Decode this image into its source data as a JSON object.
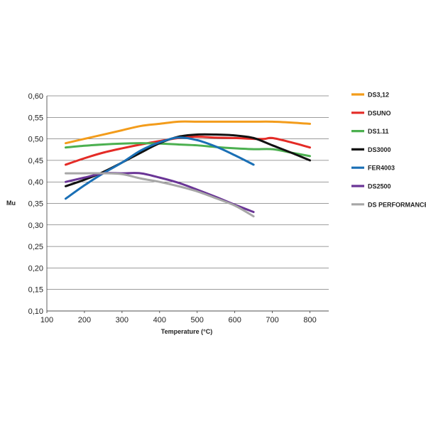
{
  "chart_data": {
    "type": "line",
    "xlabel": "Temperature (°C)",
    "ylabel": "Mu",
    "xlim": [
      100,
      850
    ],
    "ylim": [
      0.1,
      0.6
    ],
    "xticks": [
      100,
      200,
      300,
      400,
      500,
      600,
      700,
      800
    ],
    "yticks": [
      0.1,
      0.15,
      0.2,
      0.25,
      0.3,
      0.35,
      0.4,
      0.45,
      0.5,
      0.55,
      0.6
    ],
    "ytick_labels": [
      "0,10",
      "0,15",
      "0,20",
      "0,25",
      "0,30",
      "0,35",
      "0,40",
      "0,45",
      "0,50",
      "0,55",
      "0,60"
    ],
    "grid": {
      "horizontal": true,
      "vertical": false
    },
    "legend_position": "right",
    "series": [
      {
        "name": "DS3,12",
        "color": "#F39C1B",
        "x": [
          150,
          200,
          250,
          300,
          350,
          400,
          450,
          500,
          550,
          600,
          650,
          700,
          750,
          800
        ],
        "y": [
          0.49,
          0.5,
          0.51,
          0.52,
          0.53,
          0.535,
          0.54,
          0.54,
          0.54,
          0.54,
          0.54,
          0.54,
          0.538,
          0.535
        ]
      },
      {
        "name": "DSUNO",
        "color": "#E42B26",
        "x": [
          150,
          200,
          250,
          300,
          350,
          400,
          450,
          500,
          550,
          600,
          650,
          680,
          700,
          750,
          800
        ],
        "y": [
          0.44,
          0.455,
          0.468,
          0.478,
          0.487,
          0.495,
          0.502,
          0.505,
          0.503,
          0.502,
          0.5,
          0.5,
          0.502,
          0.492,
          0.48
        ]
      },
      {
        "name": "DS1.11",
        "color": "#4CB050",
        "x": [
          150,
          200,
          250,
          300,
          350,
          400,
          450,
          500,
          550,
          600,
          650,
          700,
          750,
          800
        ],
        "y": [
          0.48,
          0.484,
          0.487,
          0.489,
          0.49,
          0.489,
          0.487,
          0.485,
          0.481,
          0.478,
          0.476,
          0.476,
          0.468,
          0.46
        ]
      },
      {
        "name": "DS3000",
        "color": "#111111",
        "x": [
          150,
          200,
          250,
          300,
          350,
          400,
          450,
          500,
          550,
          600,
          650,
          700,
          750,
          800
        ],
        "y": [
          0.39,
          0.405,
          0.423,
          0.445,
          0.468,
          0.49,
          0.505,
          0.51,
          0.51,
          0.508,
          0.502,
          0.485,
          0.468,
          0.45
        ]
      },
      {
        "name": "FER4003",
        "color": "#1A6FB5",
        "x": [
          150,
          200,
          250,
          300,
          350,
          400,
          450,
          500,
          550,
          600,
          650
        ],
        "y": [
          0.361,
          0.392,
          0.42,
          0.445,
          0.473,
          0.492,
          0.503,
          0.497,
          0.482,
          0.462,
          0.44
        ]
      },
      {
        "name": "DS2500",
        "color": "#6A3596",
        "x": [
          150,
          200,
          250,
          300,
          350,
          400,
          450,
          500,
          550,
          600,
          650
        ],
        "y": [
          0.4,
          0.41,
          0.42,
          0.42,
          0.42,
          0.41,
          0.398,
          0.382,
          0.365,
          0.347,
          0.33
        ]
      },
      {
        "name": "DS PERFORMANCE",
        "color": "#A7A7A7",
        "x": [
          150,
          200,
          250,
          300,
          350,
          400,
          450,
          500,
          550,
          600,
          650
        ],
        "y": [
          0.42,
          0.42,
          0.42,
          0.418,
          0.408,
          0.4,
          0.39,
          0.378,
          0.362,
          0.345,
          0.32
        ]
      }
    ]
  }
}
